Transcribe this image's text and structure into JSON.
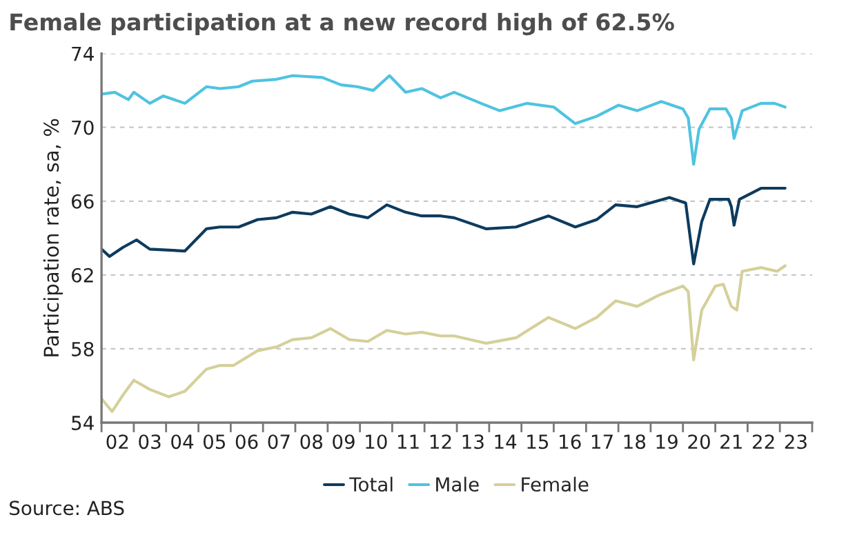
{
  "chart_data": {
    "type": "line",
    "title": "Female participation at a new record high of 62.5%",
    "ylabel": "Participation rate, sa, %",
    "annotations": [
      "Source: ABS"
    ],
    "xlim": [
      "2002-01",
      "2024-01"
    ],
    "xticks": [
      {
        "value": "2002-01",
        "label": null
      },
      {
        "value": "2002-07",
        "label": "02"
      },
      {
        "value": "2003-01",
        "label": null
      },
      {
        "value": "2003-07",
        "label": "03"
      },
      {
        "value": "2004-01",
        "label": null
      },
      {
        "value": "2004-07",
        "label": "04"
      },
      {
        "value": "2005-01",
        "label": null
      },
      {
        "value": "2005-07",
        "label": "05"
      },
      {
        "value": "2006-01",
        "label": null
      },
      {
        "value": "2006-07",
        "label": "06"
      },
      {
        "value": "2007-01",
        "label": null
      },
      {
        "value": "2007-07",
        "label": "07"
      },
      {
        "value": "2008-01",
        "label": null
      },
      {
        "value": "2008-07",
        "label": "08"
      },
      {
        "value": "2009-01",
        "label": null
      },
      {
        "value": "2009-07",
        "label": "09"
      },
      {
        "value": "2010-01",
        "label": null
      },
      {
        "value": "2010-07",
        "label": "10"
      },
      {
        "value": "2011-01",
        "label": null
      },
      {
        "value": "2011-07",
        "label": "11"
      },
      {
        "value": "2012-01",
        "label": null
      },
      {
        "value": "2012-07",
        "label": "12"
      },
      {
        "value": "2013-01",
        "label": null
      },
      {
        "value": "2013-07",
        "label": "13"
      },
      {
        "value": "2014-01",
        "label": null
      },
      {
        "value": "2014-07",
        "label": "14"
      },
      {
        "value": "2015-01",
        "label": null
      },
      {
        "value": "2015-07",
        "label": "15"
      },
      {
        "value": "2016-01",
        "label": null
      },
      {
        "value": "2016-07",
        "label": "16"
      },
      {
        "value": "2017-01",
        "label": null
      },
      {
        "value": "2017-07",
        "label": "17"
      },
      {
        "value": "2018-01",
        "label": null
      },
      {
        "value": "2018-07",
        "label": "18"
      },
      {
        "value": "2019-01",
        "label": null
      },
      {
        "value": "2019-07",
        "label": "19"
      },
      {
        "value": "2020-01",
        "label": null
      },
      {
        "value": "2020-07",
        "label": "20"
      },
      {
        "value": "2021-01",
        "label": null
      },
      {
        "value": "2021-07",
        "label": "21"
      },
      {
        "value": "2022-01",
        "label": null
      },
      {
        "value": "2022-07",
        "label": "22"
      },
      {
        "value": "2023-01",
        "label": null
      },
      {
        "value": "2023-07",
        "label": "23"
      },
      {
        "value": "2024-01",
        "label": null
      }
    ],
    "ylim": [
      54,
      74
    ],
    "yticks": [
      54,
      58,
      62,
      66,
      70,
      74
    ],
    "grid": "y",
    "legend": "bottom",
    "marker": "none",
    "line_style": "solid",
    "series": [
      {
        "name": "Total",
        "color": "#0d3b5e",
        "x": [
          "2002-01",
          "2002-04",
          "2002-09",
          "2003-02",
          "2003-07",
          "2004-08",
          "2005-04",
          "2005-09",
          "2006-04",
          "2006-11",
          "2007-06",
          "2007-12",
          "2008-07",
          "2009-02",
          "2009-09",
          "2010-04",
          "2010-11",
          "2011-06",
          "2011-12",
          "2012-07",
          "2012-12",
          "2013-12",
          "2014-11",
          "2015-11",
          "2016-09",
          "2017-05",
          "2017-12",
          "2018-08",
          "2019-08",
          "2020-02",
          "2020-05",
          "2020-08",
          "2020-11",
          "2021-06",
          "2021-07",
          "2021-08",
          "2021-10",
          "2022-06",
          "2022-11",
          "2023-03"
        ],
        "values": [
          63.4,
          63.0,
          63.5,
          63.9,
          63.4,
          63.3,
          64.5,
          64.6,
          64.6,
          65.0,
          65.1,
          65.4,
          65.3,
          65.7,
          65.3,
          65.1,
          65.8,
          65.4,
          65.2,
          65.2,
          65.1,
          64.5,
          64.6,
          65.2,
          64.6,
          65.0,
          65.8,
          65.7,
          66.2,
          65.9,
          62.6,
          64.9,
          66.1,
          66.1,
          65.7,
          64.7,
          66.1,
          66.7,
          66.7,
          66.7
        ]
      },
      {
        "name": "Male",
        "color": "#4fc3e0",
        "x": [
          "2002-01",
          "2002-06",
          "2002-11",
          "2003-01",
          "2003-07",
          "2003-12",
          "2004-08",
          "2005-04",
          "2005-09",
          "2006-04",
          "2006-09",
          "2007-06",
          "2007-12",
          "2008-11",
          "2009-06",
          "2009-12",
          "2010-06",
          "2010-12",
          "2011-06",
          "2011-12",
          "2012-07",
          "2012-12",
          "2013-10",
          "2014-05",
          "2015-03",
          "2016-01",
          "2016-09",
          "2017-05",
          "2018-01",
          "2018-08",
          "2019-05",
          "2020-01",
          "2020-03",
          "2020-05",
          "2020-07",
          "2020-11",
          "2021-05",
          "2021-07",
          "2021-08",
          "2021-11",
          "2022-06",
          "2022-11",
          "2023-03"
        ],
        "values": [
          71.8,
          71.9,
          71.5,
          71.9,
          71.3,
          71.7,
          71.3,
          72.2,
          72.1,
          72.2,
          72.5,
          72.6,
          72.8,
          72.7,
          72.3,
          72.2,
          72.0,
          72.8,
          71.9,
          72.1,
          71.6,
          71.9,
          71.3,
          70.9,
          71.3,
          71.1,
          70.2,
          70.6,
          71.2,
          70.9,
          71.4,
          71.0,
          70.5,
          68.0,
          69.9,
          71.0,
          71.0,
          70.5,
          69.4,
          70.9,
          71.3,
          71.3,
          71.1
        ]
      },
      {
        "name": "Female",
        "color": "#d4d09a",
        "x": [
          "2002-01",
          "2002-05",
          "2002-09",
          "2003-01",
          "2003-07",
          "2004-02",
          "2004-08",
          "2005-04",
          "2005-09",
          "2006-02",
          "2006-11",
          "2007-06",
          "2007-12",
          "2008-07",
          "2009-02",
          "2009-09",
          "2010-04",
          "2010-11",
          "2011-06",
          "2011-12",
          "2012-07",
          "2012-12",
          "2013-12",
          "2014-11",
          "2015-11",
          "2016-09",
          "2017-05",
          "2017-12",
          "2018-08",
          "2019-04",
          "2020-01",
          "2020-03",
          "2020-05",
          "2020-08",
          "2021-01",
          "2021-04",
          "2021-07",
          "2021-09",
          "2021-11",
          "2022-06",
          "2022-12",
          "2023-03"
        ],
        "values": [
          55.3,
          54.6,
          55.5,
          56.3,
          55.8,
          55.4,
          55.7,
          56.9,
          57.1,
          57.1,
          57.9,
          58.1,
          58.5,
          58.6,
          59.1,
          58.5,
          58.4,
          59.0,
          58.8,
          58.9,
          58.7,
          58.7,
          58.3,
          58.6,
          59.7,
          59.1,
          59.7,
          60.6,
          60.3,
          60.9,
          61.4,
          61.1,
          57.4,
          60.1,
          61.4,
          61.5,
          60.3,
          60.1,
          62.2,
          62.4,
          62.2,
          62.5
        ]
      }
    ]
  }
}
